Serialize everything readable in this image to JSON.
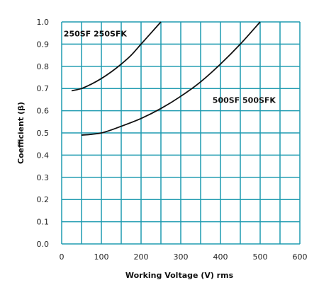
{
  "chart_data": {
    "type": "line",
    "title": "",
    "xlabel": "Working Voltage (V) rms",
    "ylabel": "Coefficient (β)",
    "xlim": [
      0,
      600
    ],
    "ylim": [
      0,
      1.0
    ],
    "x_ticks": [
      0,
      100,
      200,
      300,
      400,
      500,
      600
    ],
    "y_ticks": [
      0.0,
      0.1,
      0.2,
      0.3,
      0.4,
      0.5,
      0.6,
      0.7,
      0.8,
      0.9,
      1.0
    ],
    "x_tick_labels": [
      "0",
      "100",
      "200",
      "300",
      "400",
      "500",
      "600"
    ],
    "y_tick_labels": [
      "0.0",
      "0.1",
      "0.2",
      "0.3",
      "0.4",
      "0.5",
      "0.6",
      "0.7",
      "0.8",
      "0.9",
      "1.0"
    ],
    "x_grid_step": 50,
    "y_grid_step": 0.1,
    "grid": true,
    "grid_color": "#1f9bb0",
    "line_color": "#111111",
    "series": [
      {
        "name": "250SF 250SFK",
        "x": [
          25,
          50,
          75,
          100,
          125,
          150,
          175,
          200,
          225,
          250
        ],
        "y": [
          0.69,
          0.7,
          0.72,
          0.745,
          0.775,
          0.81,
          0.85,
          0.9,
          0.95,
          1.0
        ]
      },
      {
        "name": "500SF 500SFK",
        "x": [
          50,
          100,
          150,
          200,
          250,
          300,
          350,
          400,
          450,
          500
        ],
        "y": [
          0.49,
          0.5,
          0.53,
          0.565,
          0.61,
          0.665,
          0.73,
          0.81,
          0.9,
          1.0
        ]
      }
    ],
    "annotations": [
      {
        "text": "250SF 250SFK",
        "x": 5,
        "y": 0.935
      },
      {
        "text": "500SF 500SFK",
        "x": 380,
        "y": 0.635
      }
    ]
  }
}
